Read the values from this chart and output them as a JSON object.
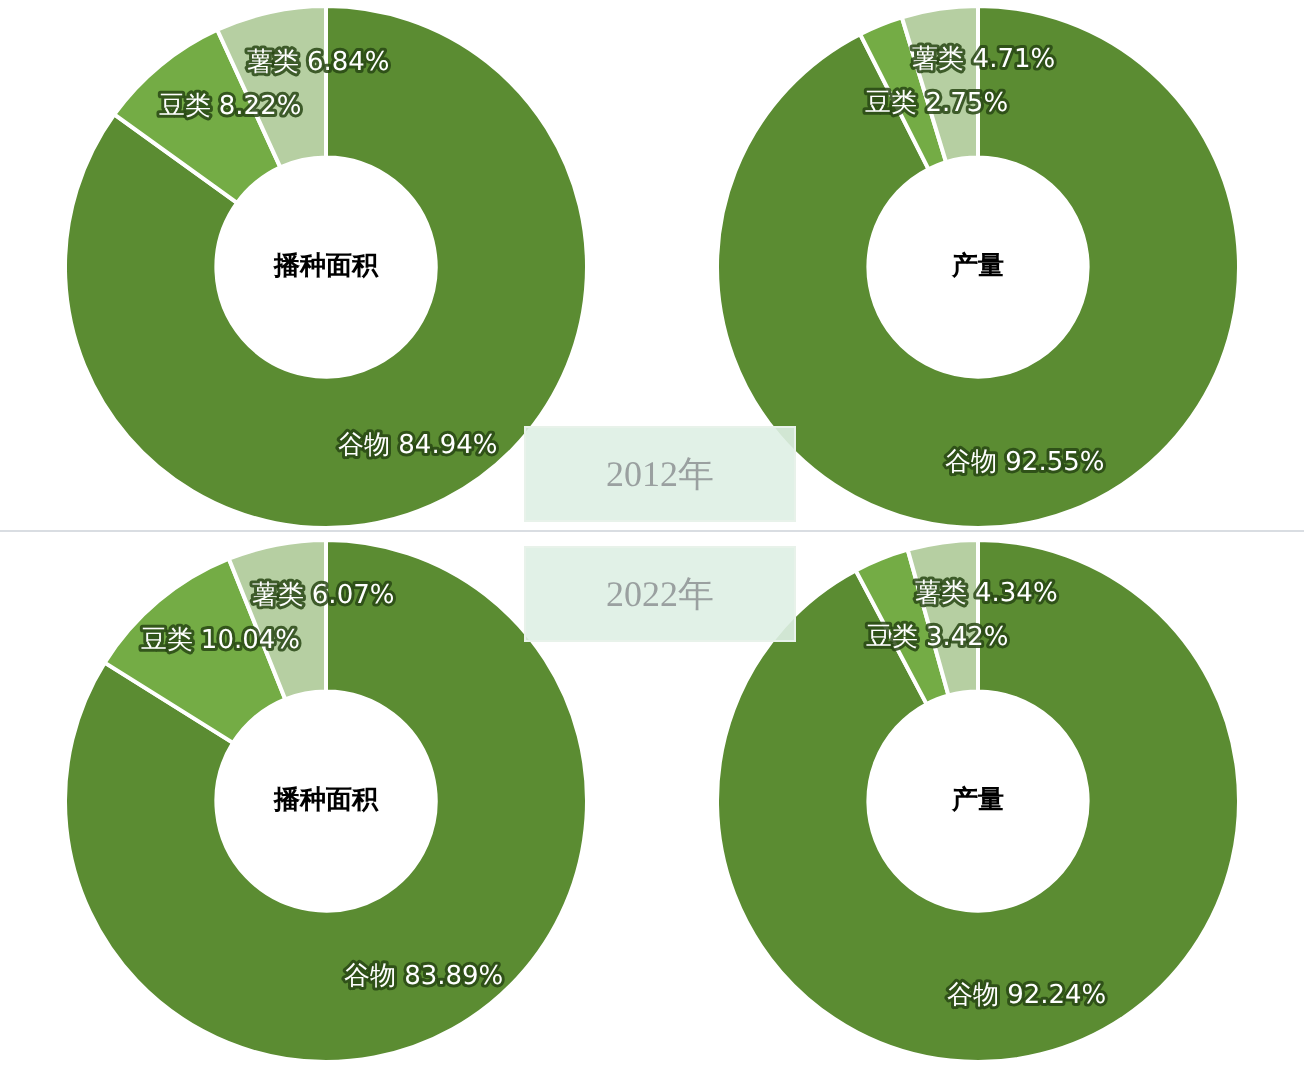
{
  "chart_data": [
    {
      "type": "donut",
      "title": "播种面积",
      "categories": [
        "谷物",
        "豆类",
        "薯类"
      ],
      "values": [
        84.94,
        8.22,
        6.84
      ],
      "colors": [
        "#5b8c32",
        "#74ac45",
        "#b6cfa2"
      ],
      "value_labels": [
        "84.94%",
        "8.22%",
        "6.84%"
      ],
      "legend": false,
      "annotations": [
        "2012年"
      ]
    },
    {
      "type": "donut",
      "title": "产量",
      "categories": [
        "谷物",
        "豆类",
        "薯类"
      ],
      "values": [
        92.55,
        2.75,
        4.71
      ],
      "colors": [
        "#5b8c32",
        "#74ac45",
        "#b6cfa2"
      ],
      "value_labels": [
        "92.55%",
        "2.75%",
        "4.71%"
      ],
      "legend": false
    },
    {
      "type": "donut",
      "title": "播种面积",
      "categories": [
        "谷物",
        "豆类",
        "薯类"
      ],
      "values": [
        83.89,
        10.04,
        6.07
      ],
      "colors": [
        "#5b8c32",
        "#74ac45",
        "#b6cfa2"
      ],
      "value_labels": [
        "83.89%",
        "10.04%",
        "6.07%"
      ],
      "legend": false,
      "annotations": [
        "2022年"
      ]
    },
    {
      "type": "donut",
      "title": "产量",
      "categories": [
        "谷物",
        "豆类",
        "薯类"
      ],
      "values": [
        92.24,
        3.42,
        4.34
      ],
      "colors": [
        "#5b8c32",
        "#74ac45",
        "#b6cfa2"
      ],
      "value_labels": [
        "92.24%",
        "3.42%",
        "4.34%"
      ],
      "legend": false
    }
  ]
}
